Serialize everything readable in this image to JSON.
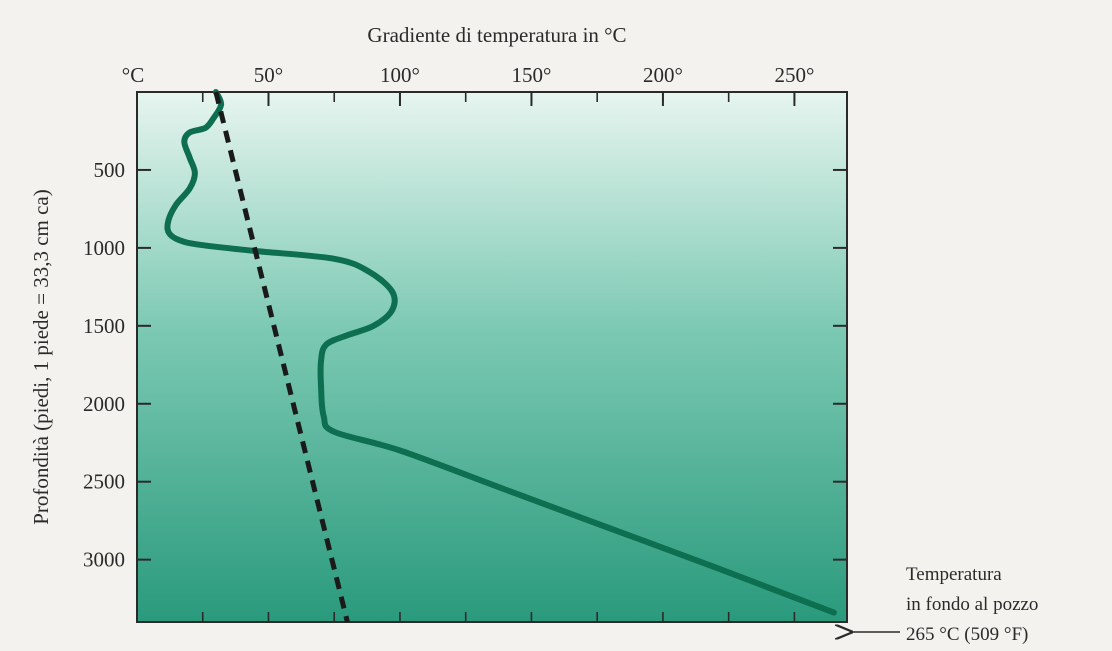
{
  "chart_data": {
    "type": "line",
    "title": "Gradiente di temperatura in °C",
    "xlabel": "Gradiente di temperatura in °C",
    "ylabel": "Profondità (piedi, 1 piede = 33,3 cm ca)",
    "x_unit_label": "°C",
    "x_ticks": [
      50,
      100,
      150,
      200,
      250
    ],
    "x_tick_labels": [
      "50°",
      "100°",
      "150°",
      "200°",
      "250°"
    ],
    "y_ticks": [
      500,
      1000,
      1500,
      2000,
      2500,
      3000
    ],
    "y_tick_labels": [
      "500",
      "1000",
      "1500",
      "2000",
      "2500",
      "3000"
    ],
    "xlim": [
      0,
      270
    ],
    "ylim": [
      0,
      3400
    ],
    "y_inverted": true,
    "grid": false,
    "colors": {
      "plot_top": "#e7f5ef",
      "plot_bottom": "#2a9a7c",
      "measured": "#0d6e50",
      "gradient": "#1a1a1a"
    },
    "series": [
      {
        "style": "solid",
        "x": [
          30,
          32,
          29,
          26,
          20,
          18,
          20,
          22,
          20,
          15,
          12,
          12,
          16,
          24,
          45,
          75,
          88,
          97,
          97,
          90,
          80,
          72,
          70,
          70,
          71,
          75,
          100,
          140,
          180,
          220,
          265
        ],
        "y": [
          0,
          80,
          170,
          230,
          260,
          320,
          420,
          520,
          620,
          720,
          820,
          900,
          950,
          980,
          1020,
          1070,
          1150,
          1280,
          1400,
          1500,
          1560,
          1620,
          1720,
          1900,
          2080,
          2180,
          2300,
          2550,
          2800,
          3050,
          3340
        ]
      },
      {
        "style": "dashed",
        "x": [
          30,
          80
        ],
        "y": [
          0,
          3400
        ]
      }
    ],
    "annotation": {
      "lines": [
        "Temperatura",
        "in fondo al pozzo",
        "265 °C (509 °F)"
      ],
      "points_to_y": 3400
    }
  }
}
